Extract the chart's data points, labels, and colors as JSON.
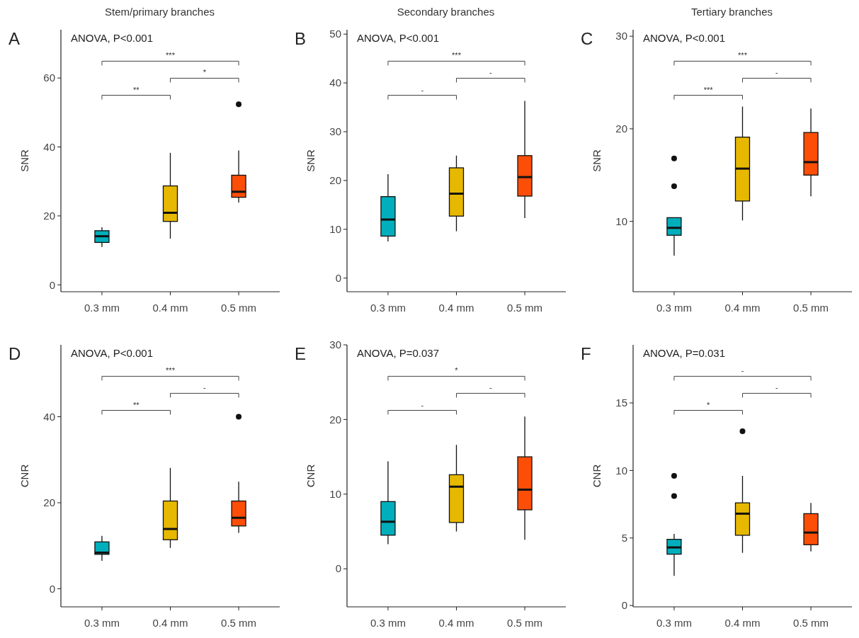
{
  "chart_data": [
    {
      "type": "box",
      "title": "Stem/primary branches",
      "ylabel": "SNR",
      "categories": [
        "0.3 mm",
        "0.4 mm",
        "0.5 mm"
      ],
      "colors": [
        "#00afbb",
        "#e7b800",
        "#fc4e07"
      ],
      "ylim": [
        -2,
        74
      ],
      "yticks": [
        0,
        20,
        40,
        60
      ],
      "boxes": [
        {
          "low": 11.0,
          "q1": 12.3,
          "median": 14.1,
          "q3": 15.7,
          "high": 16.7
        },
        {
          "low": 13.4,
          "q1": 18.4,
          "median": 20.9,
          "q3": 28.7,
          "high": 38.3
        },
        {
          "low": 23.9,
          "q1": 25.4,
          "median": 27.0,
          "q3": 31.8,
          "high": 39.0,
          "outliers": [
            52.4
          ]
        }
      ],
      "annotations": [
        "A",
        "ANOVA, P<0.001",
        "**",
        "*",
        "***"
      ]
    },
    {
      "type": "box",
      "title": "Secondary branches",
      "ylabel": "SNR",
      "categories": [
        "0.3 mm",
        "0.4 mm",
        "0.5 mm"
      ],
      "colors": [
        "#00afbb",
        "#e7b800",
        "#fc4e07"
      ],
      "ylim": [
        -2.8,
        50.9
      ],
      "yticks": [
        0,
        10,
        20,
        30,
        40,
        50
      ],
      "boxes": [
        {
          "low": 7.5,
          "q1": 8.6,
          "median": 12.0,
          "q3": 16.7,
          "high": 21.3
        },
        {
          "low": 9.6,
          "q1": 12.7,
          "median": 17.3,
          "q3": 22.6,
          "high": 25.1
        },
        {
          "low": 12.3,
          "q1": 16.8,
          "median": 20.7,
          "q3": 25.1,
          "high": 36.3
        }
      ],
      "annotations": [
        "B",
        "ANOVA, P<0.001",
        "-",
        "-",
        "***"
      ]
    },
    {
      "type": "box",
      "title": "Tertiary branches",
      "ylabel": "SNR",
      "categories": [
        "0.3 mm",
        "0.4 mm",
        "0.5 mm"
      ],
      "colors": [
        "#00afbb",
        "#e7b800",
        "#fc4e07"
      ],
      "ylim": [
        2.4,
        30.7
      ],
      "yticks": [
        10,
        20,
        30
      ],
      "boxes": [
        {
          "low": 6.3,
          "q1": 8.5,
          "median": 9.3,
          "q3": 10.4,
          "high": 10.4,
          "outliers": [
            13.8,
            16.8
          ]
        },
        {
          "low": 10.1,
          "q1": 12.2,
          "median": 15.7,
          "q3": 19.1,
          "high": 22.4
        },
        {
          "low": 12.7,
          "q1": 15.0,
          "median": 16.4,
          "q3": 19.6,
          "high": 22.2
        }
      ],
      "annotations": [
        "C",
        "ANOVA, P<0.001",
        "***",
        "-",
        "***"
      ]
    },
    {
      "type": "box",
      "ylabel": "CNR",
      "categories": [
        "0.3 mm",
        "0.4 mm",
        "0.5 mm"
      ],
      "colors": [
        "#00afbb",
        "#e7b800",
        "#fc4e07"
      ],
      "ylim": [
        -4.2,
        56.7
      ],
      "yticks": [
        0,
        20,
        40
      ],
      "boxes": [
        {
          "low": 6.5,
          "q1": 8.0,
          "median": 8.4,
          "q3": 10.9,
          "high": 12.3
        },
        {
          "low": 9.5,
          "q1": 11.4,
          "median": 13.9,
          "q3": 20.4,
          "high": 28.1
        },
        {
          "low": 13.0,
          "q1": 14.6,
          "median": 16.5,
          "q3": 20.4,
          "high": 24.9,
          "outliers": [
            40.0
          ]
        }
      ],
      "annotations": [
        "D",
        "ANOVA, P<0.001",
        "**",
        "-",
        "***"
      ]
    },
    {
      "type": "box",
      "ylabel": "CNR",
      "categories": [
        "0.3 mm",
        "0.4 mm",
        "0.5 mm"
      ],
      "colors": [
        "#00afbb",
        "#e7b800",
        "#fc4e07"
      ],
      "ylim": [
        -5.1,
        30
      ],
      "yticks": [
        0,
        10,
        20,
        30
      ],
      "boxes": [
        {
          "low": 3.3,
          "q1": 4.5,
          "median": 6.3,
          "q3": 9.0,
          "high": 14.4
        },
        {
          "low": 5.0,
          "q1": 6.2,
          "median": 11.0,
          "q3": 12.6,
          "high": 16.6
        },
        {
          "low": 3.9,
          "q1": 7.9,
          "median": 10.6,
          "q3": 15.0,
          "high": 20.4
        }
      ],
      "annotations": [
        "E",
        "ANOVA, P=0.037",
        "-",
        "-",
        "*"
      ]
    },
    {
      "type": "box",
      "ylabel": "CNR",
      "categories": [
        "0.3 mm",
        "0.4 mm",
        "0.5 mm"
      ],
      "colors": [
        "#00afbb",
        "#e7b800",
        "#fc4e07"
      ],
      "ylim": [
        -0.1,
        19.3
      ],
      "yticks": [
        0,
        5,
        10,
        15
      ],
      "boxes": [
        {
          "low": 2.2,
          "q1": 3.8,
          "median": 4.3,
          "q3": 4.9,
          "high": 5.3,
          "outliers": [
            8.1,
            9.6
          ]
        },
        {
          "low": 3.9,
          "q1": 5.2,
          "median": 6.8,
          "q3": 7.6,
          "high": 9.6,
          "outliers": [
            12.9
          ]
        },
        {
          "low": 4.0,
          "q1": 4.5,
          "median": 5.4,
          "q3": 6.8,
          "high": 7.6
        }
      ],
      "annotations": [
        "F",
        "ANOVA, P=0.031",
        "*",
        "-",
        "-"
      ]
    }
  ]
}
